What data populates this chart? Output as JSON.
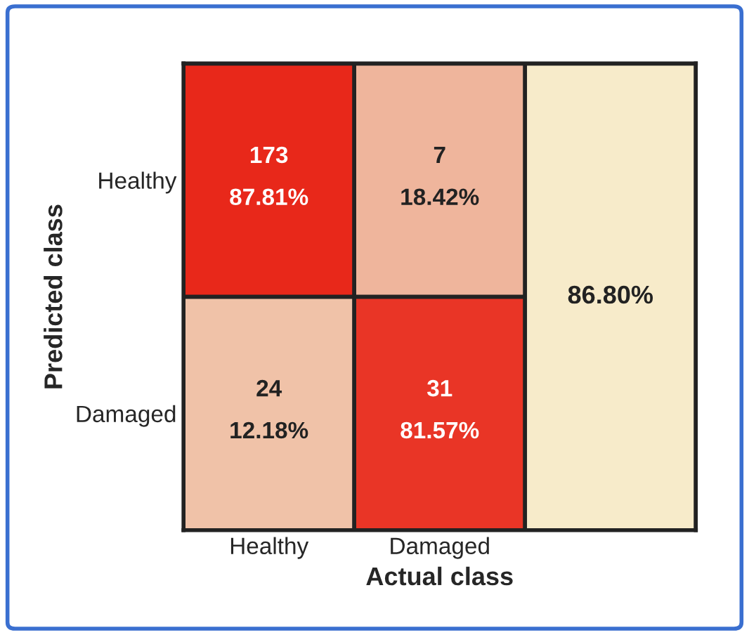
{
  "chart_data": {
    "type": "heatmap",
    "xlabel": "Actual class",
    "ylabel": "Predicted class",
    "categories": [
      "Healthy",
      "Damaged"
    ],
    "y_categories": [
      "Healthy",
      "Damaged"
    ],
    "cells": [
      [
        87.81,
        18.42
      ],
      [
        12.18,
        81.57
      ]
    ],
    "cell_labels": [
      [
        "87.81%",
        "18.42%"
      ],
      [
        "12.18%",
        "81.57%"
      ]
    ],
    "annotations": [
      "173",
      "7",
      "24",
      "31",
      "86.80%"
    ]
  }
}
